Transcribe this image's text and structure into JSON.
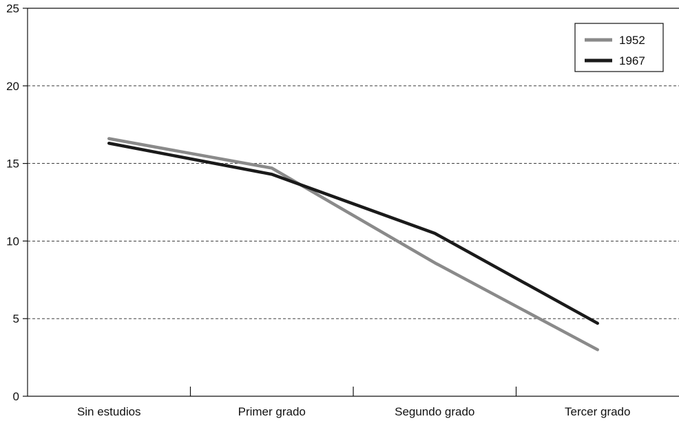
{
  "chart_data": {
    "type": "line",
    "title": "",
    "xlabel": "",
    "ylabel": "",
    "categories": [
      "Sin estudios",
      "Primer grado",
      "Segundo grado",
      "Tercer grado"
    ],
    "ylim": [
      0,
      25
    ],
    "yticks": [
      "0",
      "5",
      "10",
      "15",
      "20",
      "25"
    ],
    "grid": "horizontal dashed",
    "legend_position": "top-right",
    "series": [
      {
        "name": "1952",
        "values": [
          16.6,
          14.7,
          8.6,
          3.0
        ],
        "color": "#8a8a8a"
      },
      {
        "name": "1967",
        "values": [
          16.3,
          14.3,
          10.5,
          4.7
        ],
        "color": "#1a1a1a"
      }
    ]
  }
}
